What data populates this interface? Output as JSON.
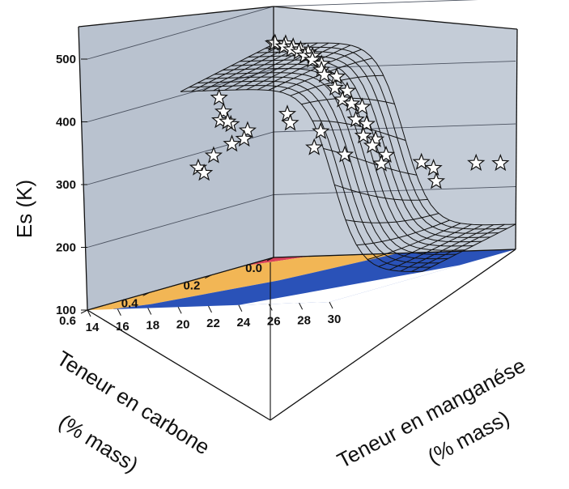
{
  "chart_data": {
    "type": "surface3d",
    "title": "",
    "zlabel": "Es (K)",
    "xlabel_line1": "Teneur en carbone",
    "xlabel_line2": "(% mass)",
    "ylabel_line1": "Teneur en manganése",
    "ylabel_line2": "(% mass)",
    "zlim": [
      100,
      500
    ],
    "z_ticks": [
      "100",
      "200",
      "300",
      "400",
      "500"
    ],
    "x_ticks": [
      "0.0",
      "0.2",
      "0.4",
      "0.6"
    ],
    "y_ticks": [
      "14",
      "16",
      "18",
      "20",
      "22",
      "24",
      "26",
      "28",
      "30"
    ],
    "floor_regions": [
      {
        "name": "",
        "color": "#d9405a"
      },
      {
        "name": "",
        "color": "#f2b655"
      },
      {
        "name": "",
        "color": "#2a52b8"
      }
    ],
    "pane_color": "#b9c2cf",
    "surface_color": "#111111",
    "marker": "white-star",
    "points": [
      {
        "c": 0.0,
        "mn": 14.0,
        "es": 441
      },
      {
        "c": 0.01,
        "mn": 14.3,
        "es": 443
      },
      {
        "c": 0.0,
        "mn": 14.8,
        "es": 440
      },
      {
        "c": 0.02,
        "mn": 15.1,
        "es": 438
      },
      {
        "c": 0.01,
        "mn": 15.5,
        "es": 436
      },
      {
        "c": 0.03,
        "mn": 15.8,
        "es": 434
      },
      {
        "c": 0.02,
        "mn": 16.2,
        "es": 432
      },
      {
        "c": 0.04,
        "mn": 16.5,
        "es": 431
      },
      {
        "c": 0.03,
        "mn": 16.9,
        "es": 428
      },
      {
        "c": 0.05,
        "mn": 17.1,
        "es": 426
      },
      {
        "c": 0.04,
        "mn": 17.4,
        "es": 424
      },
      {
        "c": 0.06,
        "mn": 17.8,
        "es": 420
      },
      {
        "c": 0.05,
        "mn": 18.2,
        "es": 412
      },
      {
        "c": 0.07,
        "mn": 18.6,
        "es": 405
      },
      {
        "c": 0.08,
        "mn": 19.0,
        "es": 398
      },
      {
        "c": 0.06,
        "mn": 19.4,
        "es": 392
      },
      {
        "c": 0.09,
        "mn": 19.9,
        "es": 378
      },
      {
        "c": 0.07,
        "mn": 20.3,
        "es": 370
      },
      {
        "c": 0.1,
        "mn": 20.6,
        "es": 360
      },
      {
        "c": 0.09,
        "mn": 21.0,
        "es": 352
      },
      {
        "c": 0.08,
        "mn": 21.5,
        "es": 345
      },
      {
        "c": 0.12,
        "mn": 21.9,
        "es": 330
      },
      {
        "c": 0.1,
        "mn": 22.2,
        "es": 320
      },
      {
        "c": 0.13,
        "mn": 22.6,
        "es": 305
      },
      {
        "c": 0.11,
        "mn": 23.0,
        "es": 296
      },
      {
        "c": 0.14,
        "mn": 23.4,
        "es": 290
      },
      {
        "c": 0.12,
        "mn": 23.9,
        "es": 272
      },
      {
        "c": 0.15,
        "mn": 24.2,
        "es": 262
      },
      {
        "c": 0.05,
        "mn": 25.6,
        "es": 240
      },
      {
        "c": 0.1,
        "mn": 26.8,
        "es": 225
      },
      {
        "c": 0.2,
        "mn": 14.5,
        "es": 382
      },
      {
        "c": 0.22,
        "mn": 15.2,
        "es": 362
      },
      {
        "c": 0.25,
        "mn": 15.6,
        "es": 352
      },
      {
        "c": 0.24,
        "mn": 16.1,
        "es": 344
      },
      {
        "c": 0.27,
        "mn": 16.5,
        "es": 352
      },
      {
        "c": 0.23,
        "mn": 17.0,
        "es": 332
      },
      {
        "c": 0.3,
        "mn": 17.4,
        "es": 320
      },
      {
        "c": 0.28,
        "mn": 17.8,
        "es": 325
      },
      {
        "c": 0.35,
        "mn": 16.2,
        "es": 290
      },
      {
        "c": 0.32,
        "mn": 16.6,
        "es": 305
      },
      {
        "c": 0.38,
        "mn": 17.2,
        "es": 285
      },
      {
        "c": 0.18,
        "mn": 18.6,
        "es": 350
      },
      {
        "c": 0.2,
        "mn": 19.2,
        "es": 338
      },
      {
        "c": 0.16,
        "mn": 20.4,
        "es": 318
      },
      {
        "c": 0.22,
        "mn": 21.2,
        "es": 300
      },
      {
        "c": 0.18,
        "mn": 22.4,
        "es": 282
      },
      {
        "c": 0.05,
        "mn": 24.8,
        "es": 250
      },
      {
        "c": 0.02,
        "mn": 27.8,
        "es": 242
      },
      {
        "c": 0.0,
        "mn": 29.0,
        "es": 238
      }
    ]
  }
}
